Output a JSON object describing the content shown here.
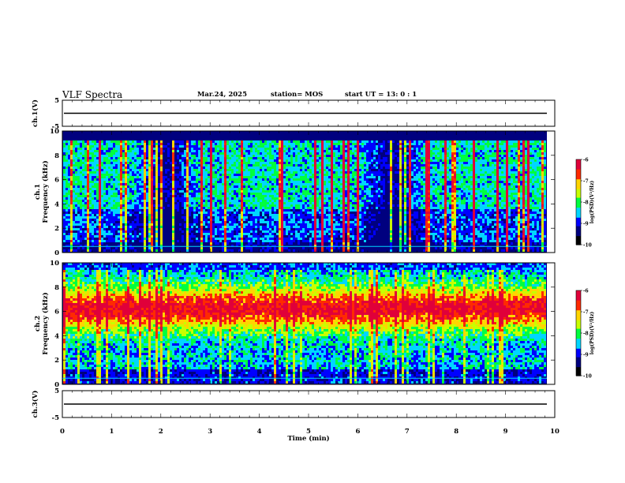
{
  "header": {
    "title": "VLF Spectra",
    "date": "Mar.24, 2025",
    "station": "station= MOS",
    "start_ut": "start  UT =   13: 0  : 1"
  },
  "colors": {
    "scale": [
      "#000000",
      "#00007f",
      "#0000ff",
      "#00d6ff",
      "#00ff3e",
      "#c8ff00",
      "#ffd500",
      "#ff2a00",
      "#e0003a",
      "#ffffff"
    ],
    "waveform": "#000000"
  },
  "chart_data": [
    {
      "type": "line",
      "panel": "ch1-waveform",
      "ylabel": "ch.1(V)",
      "ylim": [
        -5,
        5
      ],
      "yticks": [
        "5",
        "-5"
      ],
      "xlim": [
        0,
        10
      ],
      "series": [
        {
          "values_constant": 0
        }
      ]
    },
    {
      "type": "heatmap",
      "panel": "ch1-spectrogram",
      "ylabel": "ch.1\nFrequency (kHz)",
      "ylim": [
        0,
        10
      ],
      "yticks": [
        "0",
        "2",
        "4",
        "6",
        "8",
        "10"
      ],
      "xlim": [
        0,
        10
      ],
      "colorbar": {
        "label": "log(PSD)(V²/Hz)",
        "range": [
          -10,
          -6
        ],
        "ticks": [
          "-6",
          "-7",
          "-8",
          "-9",
          "-10"
        ]
      }
    },
    {
      "type": "heatmap",
      "panel": "ch2-spectrogram",
      "ylabel": "ch.2\nFrequency (kHz)",
      "ylim": [
        0,
        10
      ],
      "yticks": [
        "0",
        "2",
        "4",
        "6",
        "8",
        "10"
      ],
      "xlim": [
        0,
        10
      ],
      "colorbar": {
        "label": "log(PSD)(V²/Hz)",
        "range": [
          -10,
          -6
        ],
        "ticks": [
          "-6",
          "-7",
          "-8",
          "-9",
          "-10"
        ]
      }
    },
    {
      "type": "line",
      "panel": "ch3-waveform",
      "ylabel": "ch.3(V)",
      "ylim": [
        -5,
        5
      ],
      "yticks": [
        "5",
        "-5"
      ],
      "xlim": [
        0,
        10
      ],
      "xlabel": "Time (min)",
      "xticks": [
        "0",
        "1",
        "2",
        "3",
        "4",
        "5",
        "6",
        "7",
        "8",
        "9",
        "10"
      ],
      "series": [
        {
          "values_constant": 0
        }
      ]
    }
  ]
}
